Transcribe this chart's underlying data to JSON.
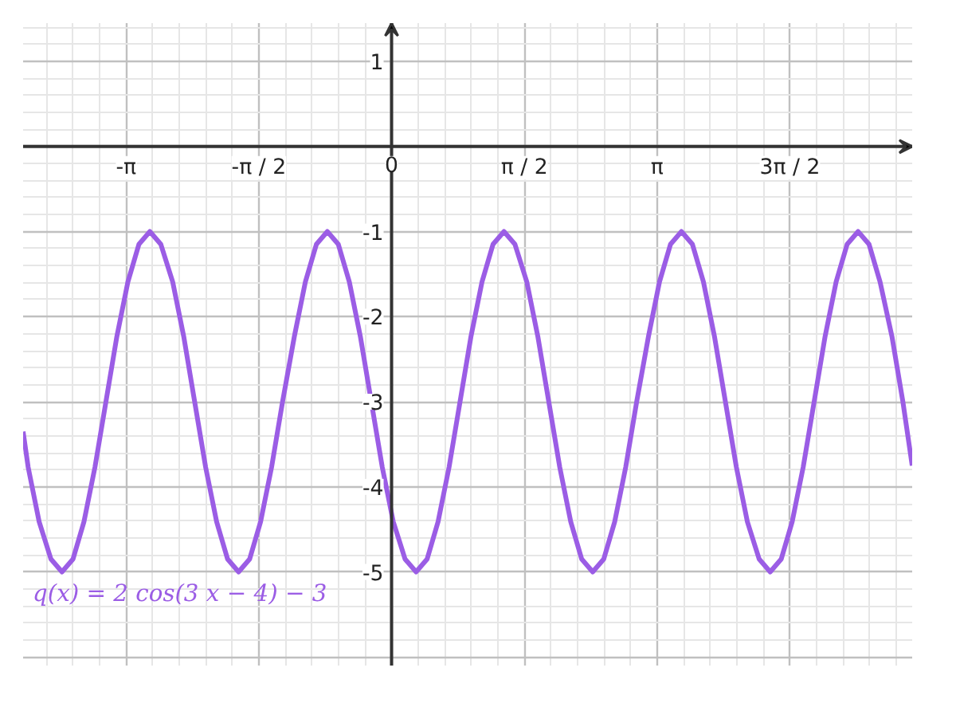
{
  "chart_data": {
    "type": "line",
    "xlim": [
      -4.36,
      6.16
    ],
    "ylim": [
      -6.1,
      1.45
    ],
    "xticks": [
      {
        "value": -3.1416,
        "label": "-π"
      },
      {
        "value": -1.5708,
        "label": "-π / 2"
      },
      {
        "value": 0,
        "label": "0"
      },
      {
        "value": 1.5708,
        "label": "π / 2"
      },
      {
        "value": 3.1416,
        "label": "π"
      },
      {
        "value": 4.7124,
        "label": "3π / 2"
      }
    ],
    "yticks": [
      1,
      -1,
      -2,
      -3,
      -4,
      -5
    ],
    "grid": true,
    "marker": "none",
    "line_style": "solid",
    "series": [
      {
        "name": "q(x)  =  2 cos(3 x − 4) − 3",
        "color": "#9b5de5",
        "x": [
          -4.36,
          -4.3,
          -4.17,
          -4.03,
          -3.9,
          -3.77,
          -3.64,
          -3.51,
          -3.38,
          -3.25,
          -3.12,
          -2.99,
          -2.86,
          -2.73,
          -2.59,
          -2.46,
          -2.33,
          -2.2,
          -2.07,
          -1.94,
          -1.81,
          -1.68,
          -1.55,
          -1.42,
          -1.29,
          -1.15,
          -1.02,
          -0.89,
          -0.76,
          -0.63,
          -0.5,
          -0.37,
          -0.24,
          -0.11,
          0.02,
          0.16,
          0.29,
          0.42,
          0.55,
          0.68,
          0.81,
          0.94,
          1.07,
          1.2,
          1.33,
          1.46,
          1.6,
          1.73,
          1.86,
          1.99,
          2.12,
          2.25,
          2.38,
          2.51,
          2.64,
          2.77,
          2.9,
          3.04,
          3.17,
          3.3,
          3.43,
          3.56,
          3.69,
          3.82,
          3.95,
          4.08,
          4.21,
          4.35,
          4.48,
          4.61,
          4.74,
          4.87,
          5.0,
          5.13,
          5.26,
          5.39,
          5.52,
          5.65,
          5.78,
          5.92,
          6.05,
          6.16
        ],
        "values": [
          -3.35,
          -3.77,
          -4.41,
          -4.85,
          -5,
          -4.85,
          -4.41,
          -3.77,
          -3,
          -2.23,
          -1.59,
          -1.15,
          -1,
          -1.15,
          -1.59,
          -2.23,
          -3,
          -3.77,
          -4.41,
          -4.85,
          -5,
          -4.85,
          -4.41,
          -3.77,
          -3,
          -2.23,
          -1.59,
          -1.15,
          -1,
          -1.15,
          -1.59,
          -2.23,
          -3,
          -3.77,
          -4.41,
          -4.85,
          -5,
          -4.85,
          -4.41,
          -3.77,
          -3,
          -2.23,
          -1.59,
          -1.15,
          -1,
          -1.15,
          -1.59,
          -2.23,
          -3,
          -3.77,
          -4.41,
          -4.85,
          -5,
          -4.85,
          -4.41,
          -3.77,
          -3,
          -2.23,
          -1.59,
          -1.15,
          -1,
          -1.15,
          -1.59,
          -2.23,
          -3,
          -3.77,
          -4.41,
          -4.85,
          -5,
          -4.85,
          -4.41,
          -3.77,
          -3,
          -2.23,
          -1.59,
          -1.15,
          -1,
          -1.15,
          -1.59,
          -2.23,
          -3,
          -3.75
        ]
      }
    ]
  }
}
